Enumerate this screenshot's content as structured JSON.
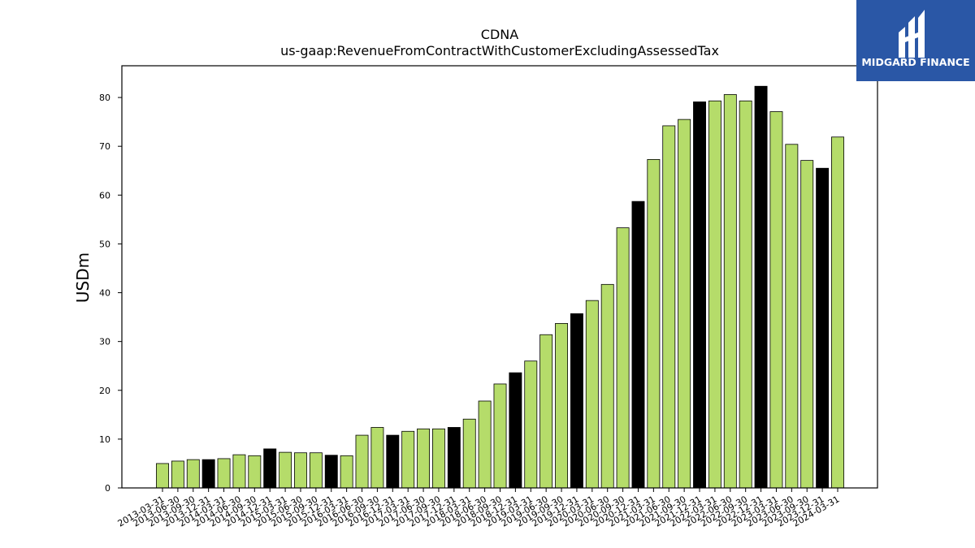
{
  "logo": {
    "text": "MIDGARD FINANCE",
    "background": "#2a57a6"
  },
  "chart_data": {
    "type": "bar",
    "title": "CDNA",
    "subtitle": "us-gaap:RevenueFromContractWithCustomerExcludingAssessedTax",
    "xlabel": "",
    "ylabel": "USDm",
    "ylim": [
      0,
      86.5
    ],
    "yticks": [
      0,
      10,
      20,
      30,
      40,
      50,
      60,
      70,
      80
    ],
    "grid": false,
    "colors": {
      "quarter": "#b5dc6a",
      "year_end": "#000000",
      "edge": "#000000"
    },
    "categories": [
      "2013-03-31",
      "2013-06-30",
      "2013-09-30",
      "2013-12-31",
      "2014-03-31",
      "2014-06-30",
      "2014-09-30",
      "2014-12-31",
      "2015-03-31",
      "2015-06-30",
      "2015-09-30",
      "2015-12-31",
      "2016-03-31",
      "2016-06-30",
      "2016-09-30",
      "2016-12-31",
      "2017-03-31",
      "2017-06-30",
      "2017-09-30",
      "2017-12-31",
      "2018-03-31",
      "2018-06-30",
      "2018-09-30",
      "2018-12-31",
      "2019-03-31",
      "2019-06-30",
      "2019-09-30",
      "2019-12-31",
      "2020-03-31",
      "2020-06-30",
      "2020-09-30",
      "2020-12-31",
      "2021-03-31",
      "2021-06-30",
      "2021-09-30",
      "2021-12-31",
      "2022-03-31",
      "2022-06-30",
      "2022-09-30",
      "2022-12-31",
      "2023-03-31",
      "2023-06-30",
      "2023-09-30",
      "2023-12-31",
      "2024-03-31"
    ],
    "values": [
      5.0,
      5.5,
      5.8,
      5.8,
      6.0,
      6.8,
      6.6,
      8.0,
      7.3,
      7.2,
      7.2,
      6.7,
      6.6,
      10.8,
      12.4,
      10.8,
      11.6,
      12.1,
      12.1,
      12.4,
      14.1,
      17.8,
      21.3,
      23.6,
      26.0,
      31.4,
      33.7,
      35.7,
      38.4,
      41.7,
      53.3,
      58.7,
      67.3,
      74.2,
      75.5,
      79.1,
      79.3,
      80.6,
      79.3,
      82.3,
      77.1,
      70.4,
      67.1,
      65.5,
      71.9
    ],
    "highlight": [
      false,
      false,
      false,
      true,
      false,
      false,
      false,
      true,
      false,
      false,
      false,
      true,
      false,
      false,
      false,
      true,
      false,
      false,
      false,
      true,
      false,
      false,
      false,
      true,
      false,
      false,
      false,
      true,
      false,
      false,
      false,
      true,
      false,
      false,
      false,
      true,
      false,
      false,
      false,
      true,
      false,
      false,
      false,
      true,
      false
    ]
  }
}
